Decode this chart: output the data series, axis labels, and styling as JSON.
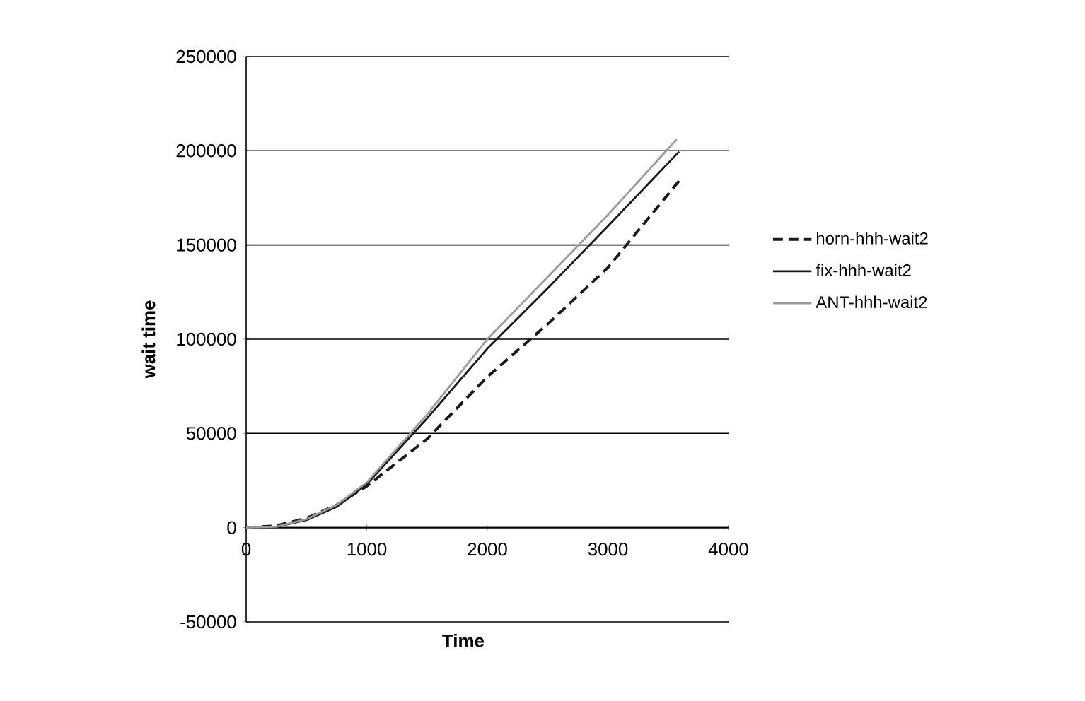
{
  "chart_data": {
    "type": "line",
    "xlabel": "Time",
    "ylabel": "wait time",
    "xlim": [
      0,
      4000
    ],
    "xticks": [
      0,
      1000,
      2000,
      3000,
      4000
    ],
    "ylim": [
      -50000,
      250000
    ],
    "yticks": [
      -50000,
      0,
      50000,
      100000,
      150000,
      200000,
      250000
    ],
    "grid": "y",
    "legend": "right",
    "marker": "none",
    "series": [
      {
        "name": "horn-hhh-wait2",
        "color": "#1a1a1a",
        "line_style": "dashed",
        "x": [
          0,
          250,
          500,
          750,
          1000,
          1500,
          2000,
          2500,
          3000,
          3590
        ],
        "values": [
          0,
          1000,
          5000,
          12000,
          22000,
          47000,
          80000,
          108000,
          138000,
          184000
        ]
      },
      {
        "name": "fix-hhh-wait2",
        "color": "#1a1a1a",
        "line_style": "solid",
        "x": [
          0,
          250,
          500,
          750,
          1000,
          1500,
          2000,
          2500,
          3000,
          3590
        ],
        "values": [
          0,
          500,
          4000,
          11000,
          23000,
          58000,
          95000,
          127000,
          160000,
          199500
        ]
      },
      {
        "name": "ANT-hhh-wait2",
        "color": "#9a9a9a",
        "line_style": "solid",
        "x": [
          0,
          250,
          500,
          750,
          1000,
          1500,
          2000,
          2500,
          3000,
          3570
        ],
        "values": [
          0,
          500,
          4500,
          12000,
          24000,
          60000,
          100000,
          133000,
          166000,
          206000
        ]
      }
    ]
  }
}
